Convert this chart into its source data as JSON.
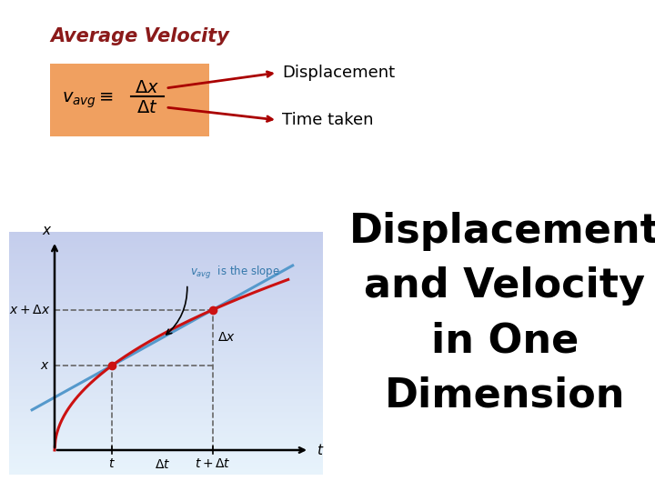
{
  "bg_color": "#ffffff",
  "title_text": "Displacement\nand Velocity\nin One\nDimension",
  "title_color": "#000000",
  "avg_vel_label": "Average Velocity",
  "avg_vel_color": "#8b1a1a",
  "box_facecolor": "#f0a060",
  "box_edgecolor": "#f0a060",
  "displacement_label": "Displacement",
  "time_label": "Time taken",
  "annotation_color": "#aa0000",
  "curve_color": "#cc1111",
  "line_color": "#5599cc",
  "graph_bg_top": "#cce8f8",
  "graph_bg_bottom": "#e8f5ff",
  "axis_color": "#000000",
  "dashed_color": "#444444",
  "dot_color": "#cc1111",
  "slope_label": "is the slope",
  "slope_v_color": "#3377aa",
  "title_fontsize": 32
}
